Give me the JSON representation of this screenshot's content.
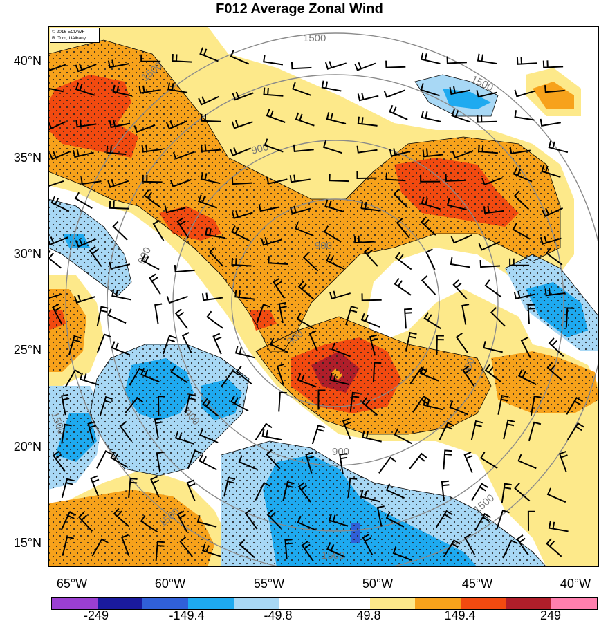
{
  "title": "F012 Average Zonal Wind",
  "credit": {
    "line1": "© 2016 ECMWF",
    "line2": "R. Torn, UAlbany"
  },
  "lat_labels": [
    "40°N",
    "35°N",
    "30°N",
    "25°N",
    "20°N",
    "15°N"
  ],
  "lon_labels": [
    "65°W",
    "60°W",
    "55°W",
    "50°W",
    "45°W",
    "40°W"
  ],
  "contour_labels": [
    "1500",
    "1500",
    "1500",
    "900",
    "900",
    "900",
    "900",
    "900",
    "900",
    "300",
    "1500",
    "1500",
    "1500",
    "1500"
  ],
  "colorbar": {
    "colors": [
      "#9b3fd1",
      "#1a1a9e",
      "#3060d8",
      "#1eaaf0",
      "#a8d8f5",
      "#ffffff",
      "#ffffff",
      "#fde98a",
      "#f7a21b",
      "#f24a10",
      "#b01e2a",
      "#ff7fae"
    ],
    "tick_labels": [
      "-249",
      "-149.4",
      "-49.8",
      "49.8",
      "149.4",
      "249"
    ]
  }
}
